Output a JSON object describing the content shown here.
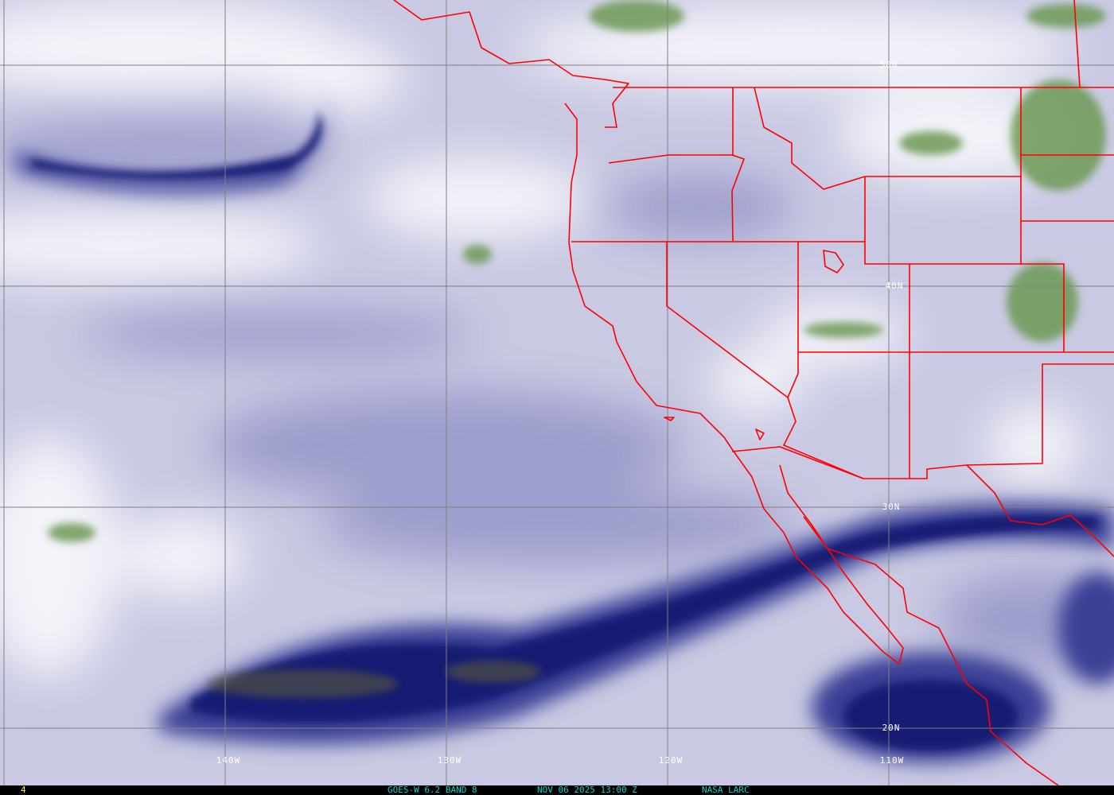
{
  "image": {
    "satellite_product": "GOES-W 6.2 BAND 8",
    "datetime": "NOV 06 2025 13:00 Z",
    "credit": "NASA LARC",
    "frame_index": "4"
  },
  "grid": {
    "latitude_labels": [
      "50N",
      "40N",
      "30N",
      "20N"
    ],
    "longitude_labels": [
      "140W",
      "130W",
      "120W",
      "110W"
    ]
  },
  "colors": {
    "background_moisture": "#c9c9e3",
    "dry_band": "#1a1f78",
    "moist_white": "#f4f4fa",
    "cold_cloud_green": "#6d9a55",
    "borders": "#ff0000",
    "gridlines": "#808080",
    "footer_text": "#00d8c8",
    "frame_index_text": "#ffff40"
  }
}
